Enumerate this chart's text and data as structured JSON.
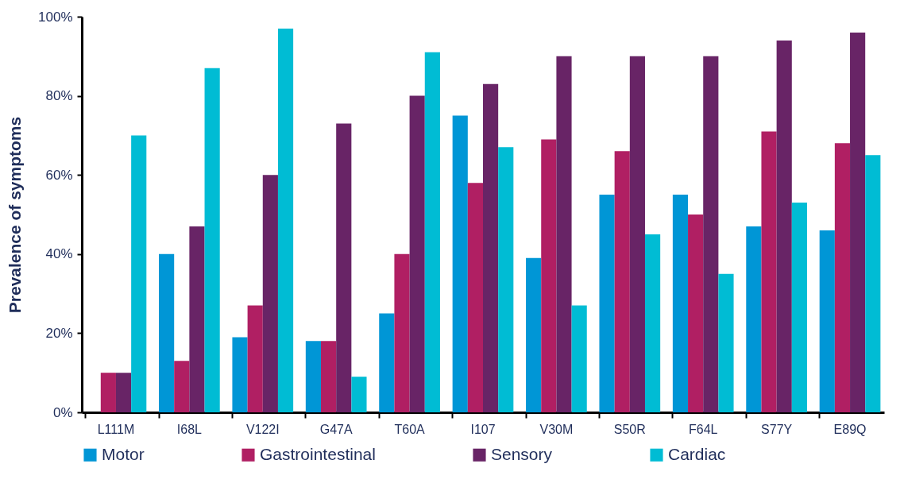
{
  "chart_data": {
    "type": "bar",
    "ylabel": "Prevalence of symptoms",
    "categories": [
      "L111M",
      "I68L",
      "V122I",
      "G47A",
      "T60A",
      "I107",
      "V30M",
      "S50R",
      "F64L",
      "S77Y",
      "E89Q"
    ],
    "series": [
      {
        "name": "Motor",
        "color": "#0096d6",
        "values": [
          0,
          40,
          19,
          18,
          25,
          75,
          39,
          55,
          55,
          47,
          46
        ]
      },
      {
        "name": "Gastrointestinal",
        "color": "#b01f63",
        "values": [
          10,
          13,
          27,
          18,
          40,
          58,
          69,
          66,
          50,
          71,
          68
        ]
      },
      {
        "name": "Sensory",
        "color": "#682466",
        "values": [
          10,
          47,
          60,
          73,
          80,
          83,
          90,
          90,
          90,
          94,
          96
        ]
      },
      {
        "name": "Cardiac",
        "color": "#00bcd4",
        "values": [
          70,
          87,
          97,
          9,
          91,
          67,
          27,
          45,
          35,
          53,
          65
        ]
      }
    ],
    "ylim": [
      0,
      100
    ],
    "yticks": [
      {
        "value": 0,
        "label": "0%"
      },
      {
        "value": 20,
        "label": "20%"
      },
      {
        "value": 40,
        "label": "40%"
      },
      {
        "value": 60,
        "label": "60%"
      },
      {
        "value": 80,
        "label": "80%"
      },
      {
        "value": 100,
        "label": "100%"
      }
    ],
    "grid": false,
    "legend": "bottom"
  }
}
